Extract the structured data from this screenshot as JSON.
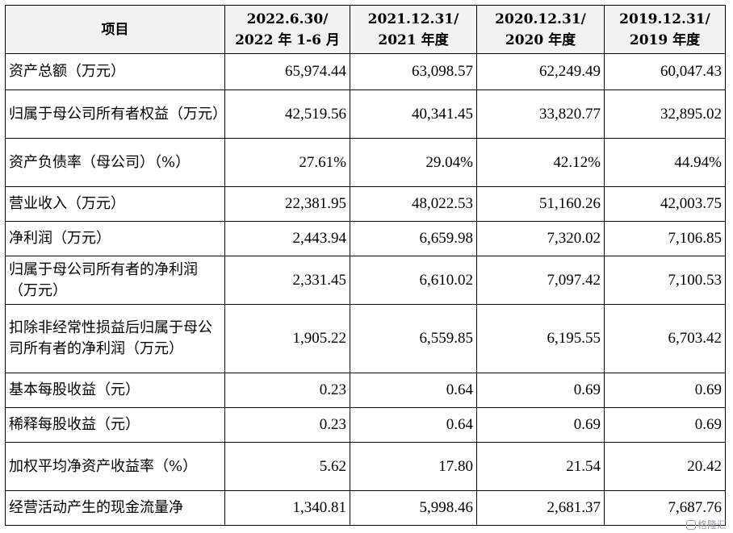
{
  "table": {
    "header": {
      "item": "项目",
      "columns": [
        {
          "line1": "2022.6.30/",
          "line2": "2022 年 1-6 月"
        },
        {
          "line1": "2021.12.31/",
          "line2": "2021 年度"
        },
        {
          "line1": "2020.12.31/",
          "line2": "2020 年度"
        },
        {
          "line1": "2019.12.31/",
          "line2": "2019 年度"
        }
      ]
    },
    "rows": [
      {
        "label": "资产总额（万元）",
        "values": [
          "65,974.44",
          "63,098.57",
          "62,249.49",
          "60,047.43"
        ]
      },
      {
        "label": "归属于母公司所有者权益（万元）",
        "values": [
          "42,519.56",
          "40,341.45",
          "33,820.77",
          "32,895.02"
        ]
      },
      {
        "label": "资产负债率（母公司）（%）",
        "values": [
          "27.61%",
          "29.04%",
          "42.12%",
          "44.94%"
        ]
      },
      {
        "label": "营业收入（万元）",
        "values": [
          "22,381.95",
          "48,022.53",
          "51,160.26",
          "42,003.75"
        ]
      },
      {
        "label": "净利润（万元）",
        "values": [
          "2,443.94",
          "6,659.98",
          "7,320.02",
          "7,106.85"
        ]
      },
      {
        "label": "归属于母公司所有者的净利润（万元）",
        "values": [
          "2,331.45",
          "6,610.02",
          "7,097.42",
          "7,100.53"
        ]
      },
      {
        "label": "扣除非经常性损益后归属于母公司所有者的净利润（万元）",
        "values": [
          "1,905.22",
          "6,559.85",
          "6,195.55",
          "6,703.42"
        ]
      },
      {
        "label": "基本每股收益（元）",
        "values": [
          "0.23",
          "0.64",
          "0.69",
          "0.69"
        ]
      },
      {
        "label": "稀释每股收益（元）",
        "values": [
          "0.23",
          "0.64",
          "0.69",
          "0.69"
        ]
      },
      {
        "label": "加权平均净资产收益率（%）",
        "values": [
          "5.62",
          "17.80",
          "21.54",
          "20.42"
        ]
      },
      {
        "label": "经营活动产生的现金流量净",
        "values": [
          "1,340.81",
          "5,998.46",
          "2,681.37",
          "7,687.76"
        ]
      }
    ]
  },
  "watermark": {
    "text": "格隆汇",
    "icon": "brand-logo-icon"
  }
}
